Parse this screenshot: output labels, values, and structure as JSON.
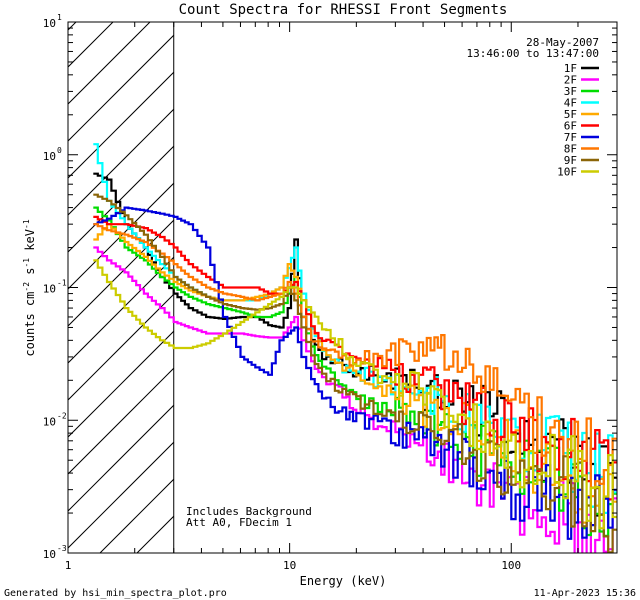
{
  "chart_data": {
    "type": "line",
    "title": "Count Spectra for RHESSI Front Segments",
    "xlabel": "Energy (keV)",
    "ylabel": "counts cm-2 s-1 keV-1",
    "ylabel_parts": {
      "a": "counts cm",
      "e1": "-2",
      "b": " s",
      "e2": "-1",
      "c": " keV",
      "e3": "-1"
    },
    "xscale": "log",
    "yscale": "log",
    "xlim": [
      1,
      300
    ],
    "ylim": [
      0.001,
      10
    ],
    "x_ticks": [
      {
        "v": 1,
        "label": "1"
      },
      {
        "v": 10,
        "label": "10"
      },
      {
        "v": 100,
        "label": "100"
      }
    ],
    "y_ticks": [
      {
        "v": 0.001,
        "base": "10",
        "exp": "-3"
      },
      {
        "v": 0.01,
        "base": "10",
        "exp": "-2"
      },
      {
        "v": 0.1,
        "base": "10",
        "exp": "-1"
      },
      {
        "v": 1,
        "base": "10",
        "exp": "0"
      },
      {
        "v": 10,
        "base": "10",
        "exp": "1"
      }
    ],
    "hatch_region": {
      "x_from": 1,
      "x_to": 3
    },
    "date": "28-May-2007",
    "time_range": "13:46:00 to 13:47:00",
    "legend_position": "top-right",
    "annotations": [
      "Includes Background",
      "Att A0, FDecim 1"
    ],
    "series": [
      {
        "name": "1F",
        "color": "#000000",
        "x": [
          1.3,
          1.5,
          1.8,
          2.2,
          2.6,
          3.0,
          3.5,
          4.2,
          5,
          6,
          7,
          8,
          9,
          9.8,
          10.5,
          11.3,
          12.5,
          14,
          16,
          18,
          20,
          25,
          30,
          35,
          40,
          45,
          50,
          60,
          70,
          80,
          90,
          100,
          120,
          150,
          180,
          200,
          250,
          300
        ],
        "values": [
          0.72,
          0.65,
          0.3,
          0.2,
          0.12,
          0.09,
          0.07,
          0.06,
          0.058,
          0.06,
          0.06,
          0.052,
          0.05,
          0.07,
          0.23,
          0.06,
          0.04,
          0.03,
          0.028,
          0.025,
          0.022,
          0.025,
          0.02,
          0.02,
          0.015,
          0.018,
          0.016,
          0.013,
          0.012,
          0.011,
          0.01,
          0.008,
          0.007,
          0.006,
          0.005,
          0.004,
          0.004,
          0.003
        ]
      },
      {
        "name": "2F",
        "color": "#ff00ff",
        "x": [
          1.3,
          1.5,
          1.8,
          2.2,
          2.6,
          3.0,
          3.5,
          4.2,
          5,
          6,
          7,
          8,
          9,
          9.8,
          10.5,
          11.3,
          12.5,
          14,
          16,
          18,
          20,
          25,
          30,
          35,
          40,
          45,
          50,
          60,
          70,
          80,
          90,
          100,
          120,
          150,
          180,
          200,
          250,
          300
        ],
        "values": [
          0.2,
          0.16,
          0.13,
          0.09,
          0.07,
          0.055,
          0.05,
          0.045,
          0.045,
          0.045,
          0.043,
          0.042,
          0.042,
          0.05,
          0.06,
          0.04,
          0.028,
          0.02,
          0.017,
          0.015,
          0.012,
          0.01,
          0.009,
          0.008,
          0.007,
          0.006,
          0.005,
          0.004,
          0.0035,
          0.003,
          0.0028,
          0.0025,
          0.0022,
          0.002,
          0.0018,
          0.0015,
          0.0013,
          0.0012
        ]
      },
      {
        "name": "3F",
        "color": "#00dd00",
        "x": [
          1.3,
          1.5,
          1.8,
          2.2,
          2.6,
          3.0,
          3.5,
          4.2,
          5,
          6,
          7,
          8,
          9,
          9.8,
          10.5,
          11.3,
          12.5,
          14,
          16,
          18,
          20,
          25,
          30,
          35,
          40,
          45,
          50,
          60,
          70,
          80,
          90,
          100,
          120,
          150,
          180,
          200,
          250,
          300
        ],
        "values": [
          0.4,
          0.32,
          0.2,
          0.16,
          0.12,
          0.1,
          0.085,
          0.075,
          0.07,
          0.065,
          0.06,
          0.06,
          0.065,
          0.09,
          0.12,
          0.06,
          0.035,
          0.025,
          0.02,
          0.018,
          0.015,
          0.014,
          0.012,
          0.011,
          0.01,
          0.009,
          0.008,
          0.007,
          0.006,
          0.0055,
          0.005,
          0.0045,
          0.004,
          0.0035,
          0.003,
          0.0028,
          0.0025,
          0.002
        ]
      },
      {
        "name": "4F",
        "color": "#00ffff",
        "x": [
          1.3,
          1.5,
          1.8,
          2.2,
          2.6,
          3.0,
          3.5,
          4.2,
          5,
          6,
          7,
          8,
          9,
          9.8,
          10.5,
          11.3,
          12.5,
          14,
          16,
          18,
          20,
          25,
          30,
          35,
          40,
          45,
          50,
          60,
          70,
          80,
          90,
          100,
          120,
          150,
          180,
          200,
          250,
          300
        ],
        "values": [
          1.2,
          0.45,
          0.3,
          0.2,
          0.15,
          0.12,
          0.1,
          0.085,
          0.08,
          0.08,
          0.08,
          0.09,
          0.1,
          0.14,
          0.2,
          0.09,
          0.05,
          0.035,
          0.028,
          0.024,
          0.022,
          0.02,
          0.018,
          0.017,
          0.016,
          0.015,
          0.014,
          0.012,
          0.011,
          0.01,
          0.009,
          0.008,
          0.007,
          0.006,
          0.005,
          0.0045,
          0.004,
          0.0035
        ]
      },
      {
        "name": "5F",
        "color": "#ffaa00",
        "x": [
          1.3,
          1.5,
          1.8,
          2.2,
          2.6,
          3.0,
          3.5,
          4.2,
          5,
          6,
          7,
          8,
          9,
          9.8,
          10.5,
          11.3,
          12.5,
          14,
          16,
          18,
          20,
          25,
          30,
          35,
          40,
          45,
          50,
          60,
          70,
          80,
          90,
          100,
          120,
          150,
          180,
          200,
          250,
          300
        ],
        "values": [
          0.23,
          0.3,
          0.22,
          0.17,
          0.13,
          0.11,
          0.095,
          0.085,
          0.08,
          0.08,
          0.085,
          0.09,
          0.1,
          0.15,
          0.12,
          0.08,
          0.05,
          0.035,
          0.028,
          0.024,
          0.02,
          0.018,
          0.015,
          0.014,
          0.012,
          0.011,
          0.01,
          0.009,
          0.008,
          0.007,
          0.0065,
          0.006,
          0.005,
          0.0045,
          0.004,
          0.0035,
          0.003,
          0.0025
        ]
      },
      {
        "name": "6F",
        "color": "#ff0000",
        "x": [
          1.3,
          1.5,
          1.8,
          2.2,
          2.6,
          3.0,
          3.5,
          4.2,
          5,
          6,
          7,
          8,
          9,
          9.8,
          10.5,
          11.3,
          12.5,
          14,
          16,
          18,
          20,
          25,
          30,
          35,
          40,
          45,
          50,
          60,
          70,
          80,
          90,
          100,
          120,
          150,
          180,
          200,
          250,
          300
        ],
        "values": [
          0.34,
          0.3,
          0.3,
          0.28,
          0.24,
          0.2,
          0.15,
          0.12,
          0.1,
          0.1,
          0.1,
          0.09,
          0.09,
          0.1,
          0.11,
          0.08,
          0.05,
          0.04,
          0.035,
          0.03,
          0.026,
          0.025,
          0.022,
          0.02,
          0.019,
          0.018,
          0.016,
          0.014,
          0.012,
          0.011,
          0.01,
          0.009,
          0.008,
          0.007,
          0.006,
          0.0055,
          0.005,
          0.004
        ]
      },
      {
        "name": "7F",
        "color": "#0000dd",
        "x": [
          1.3,
          1.5,
          1.8,
          2.2,
          2.6,
          3.0,
          3.5,
          4.2,
          5,
          6,
          7,
          8,
          9,
          9.8,
          10.5,
          11.3,
          12.5,
          14,
          16,
          18,
          20,
          25,
          30,
          35,
          40,
          45,
          50,
          60,
          70,
          80,
          90,
          100,
          120,
          150,
          180,
          200,
          250,
          300
        ],
        "values": [
          0.3,
          0.33,
          0.4,
          0.38,
          0.36,
          0.34,
          0.3,
          0.2,
          0.06,
          0.03,
          0.025,
          0.022,
          0.04,
          0.045,
          0.05,
          0.03,
          0.02,
          0.015,
          0.012,
          0.011,
          0.01,
          0.009,
          0.008,
          0.0075,
          0.007,
          0.0065,
          0.006,
          0.005,
          0.0045,
          0.004,
          0.0035,
          0.003,
          0.0028,
          0.0025,
          0.0022,
          0.002,
          0.0018,
          0.0015
        ]
      },
      {
        "name": "8F",
        "color": "#ff7700",
        "x": [
          1.3,
          1.5,
          1.8,
          2.2,
          2.6,
          3.0,
          3.5,
          4.2,
          5,
          6,
          7,
          8,
          9,
          9.8,
          10.5,
          11.3,
          12.5,
          14,
          16,
          18,
          20,
          25,
          30,
          35,
          40,
          45,
          50,
          60,
          70,
          80,
          90,
          100,
          120,
          150,
          180,
          200,
          250,
          300
        ],
        "values": [
          0.3,
          0.27,
          0.25,
          0.22,
          0.18,
          0.15,
          0.12,
          0.1,
          0.09,
          0.085,
          0.08,
          0.085,
          0.09,
          0.11,
          0.09,
          0.06,
          0.04,
          0.035,
          0.032,
          0.03,
          0.028,
          0.03,
          0.032,
          0.034,
          0.035,
          0.036,
          0.03,
          0.025,
          0.02,
          0.016,
          0.014,
          0.012,
          0.01,
          0.008,
          0.007,
          0.006,
          0.005,
          0.004
        ]
      },
      {
        "name": "9F",
        "color": "#8b6508",
        "x": [
          1.3,
          1.5,
          1.8,
          2.2,
          2.6,
          3.0,
          3.5,
          4.2,
          5,
          6,
          7,
          8,
          9,
          9.8,
          10.5,
          11.3,
          12.5,
          14,
          16,
          18,
          20,
          25,
          30,
          35,
          40,
          45,
          50,
          60,
          70,
          80,
          90,
          100,
          120,
          150,
          180,
          200,
          250,
          300
        ],
        "values": [
          0.5,
          0.45,
          0.35,
          0.25,
          0.17,
          0.12,
          0.1,
          0.085,
          0.075,
          0.07,
          0.068,
          0.07,
          0.075,
          0.1,
          0.08,
          0.05,
          0.03,
          0.022,
          0.018,
          0.016,
          0.014,
          0.012,
          0.011,
          0.01,
          0.009,
          0.008,
          0.007,
          0.006,
          0.0055,
          0.005,
          0.0045,
          0.004,
          0.0035,
          0.003,
          0.0028,
          0.0025,
          0.0022,
          0.002
        ]
      },
      {
        "name": "10F",
        "color": "#cccc00",
        "x": [
          1.3,
          1.5,
          1.8,
          2.2,
          2.6,
          3.0,
          3.5,
          4.2,
          5,
          6,
          7,
          8,
          9,
          9.8,
          10.5,
          11.3,
          12.5,
          14,
          16,
          18,
          20,
          25,
          30,
          35,
          40,
          45,
          50,
          60,
          70,
          80,
          90,
          100,
          120,
          150,
          180,
          200,
          250,
          300
        ],
        "values": [
          0.16,
          0.11,
          0.07,
          0.05,
          0.04,
          0.035,
          0.035,
          0.038,
          0.045,
          0.055,
          0.065,
          0.075,
          0.085,
          0.1,
          0.1,
          0.08,
          0.065,
          0.05,
          0.04,
          0.032,
          0.025,
          0.022,
          0.02,
          0.018,
          0.016,
          0.014,
          0.012,
          0.01,
          0.009,
          0.008,
          0.007,
          0.006,
          0.005,
          0.0045,
          0.004,
          0.0035,
          0.003,
          0.0025
        ]
      }
    ]
  },
  "footer": {
    "generated_by": "Generated by hsi_min_spectra_plot.pro",
    "timestamp": "11-Apr-2023 15:36"
  }
}
